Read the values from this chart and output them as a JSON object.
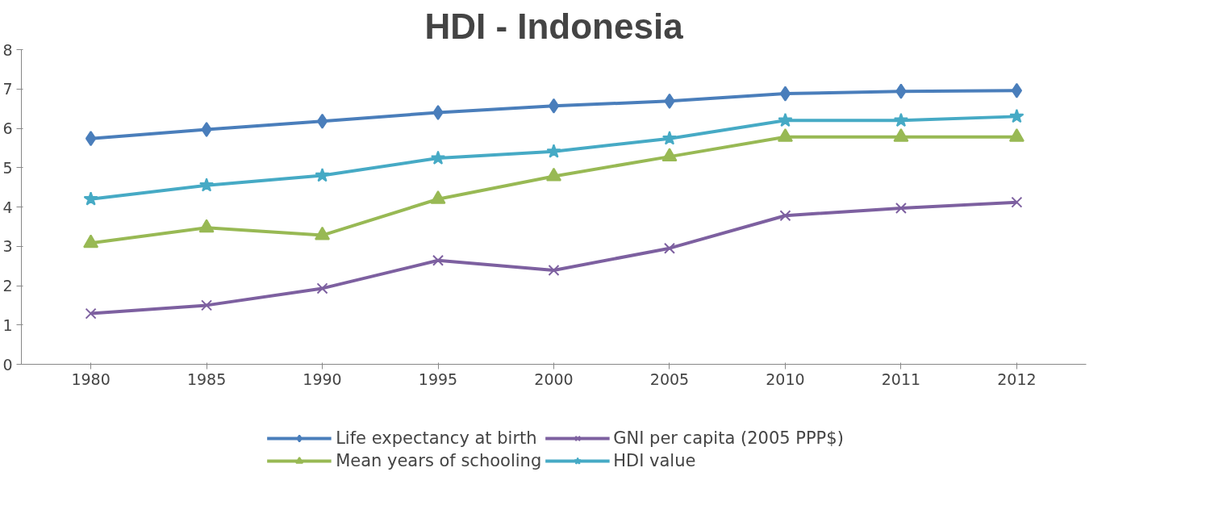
{
  "chart_data": {
    "type": "line",
    "title": "HDI - Indonesia",
    "categories": [
      "1980",
      "1985",
      "1990",
      "1995",
      "2000",
      "2005",
      "2010",
      "2011",
      "2012"
    ],
    "series": [
      {
        "name": "Life expectancy at birth",
        "color": "#4a7ebb",
        "marker": "diamond",
        "values": [
          5.74,
          5.97,
          6.18,
          6.4,
          6.57,
          6.69,
          6.88,
          6.94,
          6.96
        ]
      },
      {
        "name": "Mean years of schooling",
        "color": "#98b954",
        "marker": "triangle",
        "values": [
          3.08,
          3.47,
          3.28,
          4.2,
          4.78,
          5.28,
          5.78,
          5.78,
          5.78
        ]
      },
      {
        "name": "GNI per capita (2005 PPP$)",
        "color": "#7d60a0",
        "marker": "cross",
        "values": [
          1.29,
          1.5,
          1.93,
          2.64,
          2.39,
          2.95,
          3.78,
          3.97,
          4.12
        ]
      },
      {
        "name": "HDI value",
        "color": "#46aac5",
        "marker": "star",
        "values": [
          4.2,
          4.55,
          4.8,
          5.24,
          5.41,
          5.74,
          6.2,
          6.2,
          6.3
        ]
      }
    ],
    "ylim": [
      0,
      8
    ],
    "yticks": [
      0,
      1,
      2,
      3,
      4,
      5,
      6,
      7,
      8
    ],
    "grid": false,
    "legend": "bottom"
  }
}
